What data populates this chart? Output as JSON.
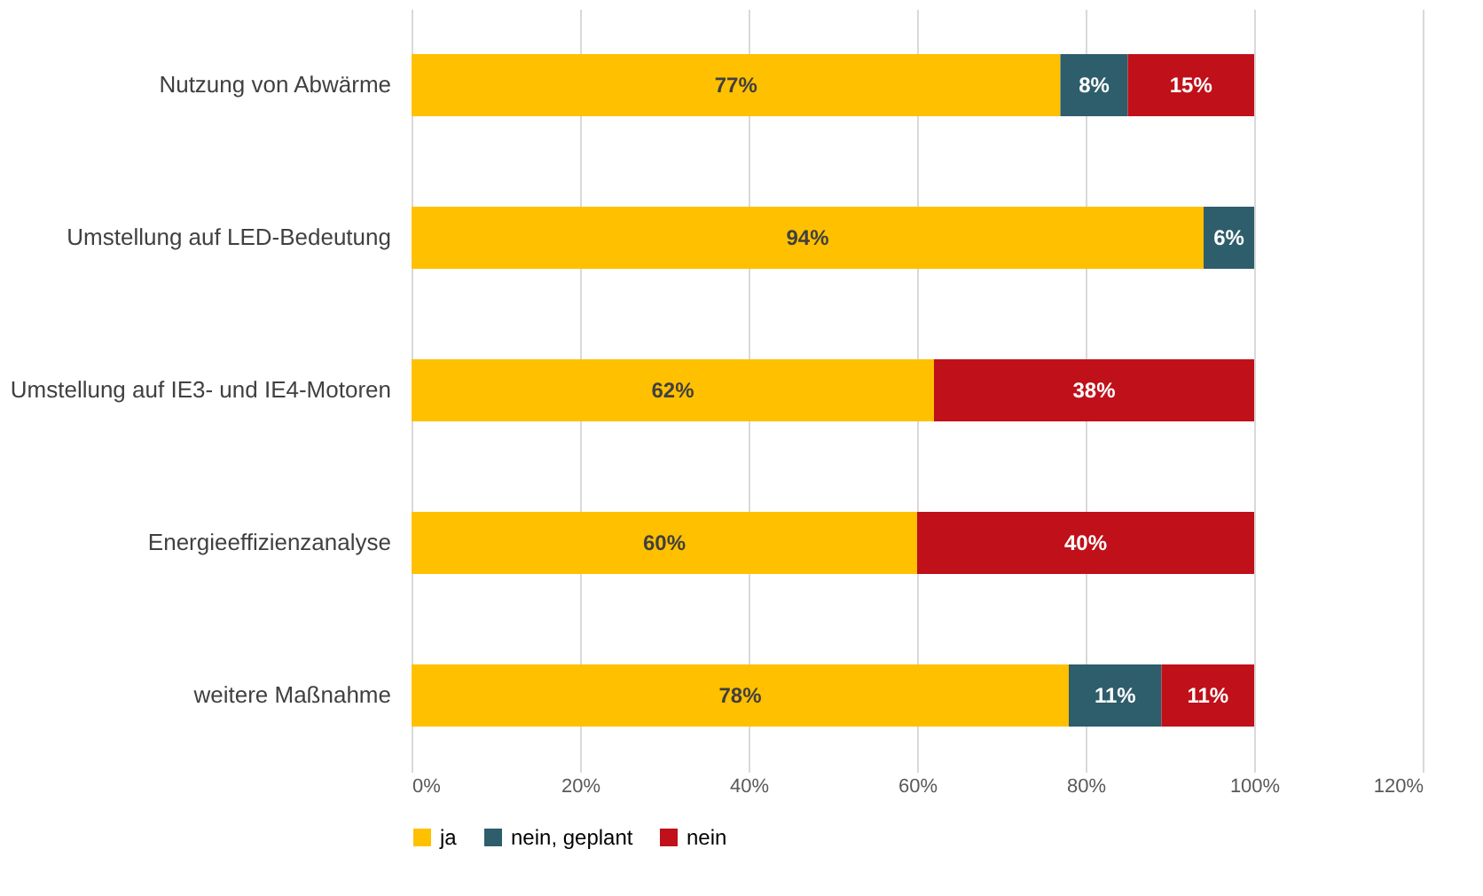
{
  "chart_data": {
    "type": "bar",
    "orientation": "horizontal",
    "stacked": true,
    "grid": "x",
    "legend": "bottom",
    "categories": [
      "Nutzung von Abwärme",
      "Umstellung auf LED-Bedeutung",
      "Umstellung auf IE3- und IE4-Motoren",
      "Energieeffizienzanalyse",
      "weitere Maßnahme"
    ],
    "series": [
      {
        "name": "ja",
        "color": "#ffc000",
        "values": [
          77,
          94,
          62,
          60,
          78
        ],
        "value_labels": [
          "77%",
          "94%",
          "62%",
          "60%",
          "78%"
        ]
      },
      {
        "name": "nein, geplant",
        "color": "#2e5d6b",
        "values": [
          8,
          6,
          null,
          null,
          11
        ],
        "value_labels": [
          "8%",
          "6%",
          null,
          null,
          "11%"
        ]
      },
      {
        "name": "nein",
        "color": "#c0101a",
        "values": [
          15,
          null,
          38,
          40,
          11
        ],
        "value_labels": [
          "15%",
          null,
          "38%",
          "40%",
          "11%"
        ]
      }
    ],
    "xlim": [
      0,
      120
    ],
    "xticks": [
      {
        "value": 0,
        "label": "0%"
      },
      {
        "value": 20,
        "label": "20%"
      },
      {
        "value": 40,
        "label": "40%"
      },
      {
        "value": 60,
        "label": "60%"
      },
      {
        "value": 80,
        "label": "80%"
      },
      {
        "value": 100,
        "label": "100%"
      },
      {
        "value": 120,
        "label": "120%"
      }
    ]
  }
}
